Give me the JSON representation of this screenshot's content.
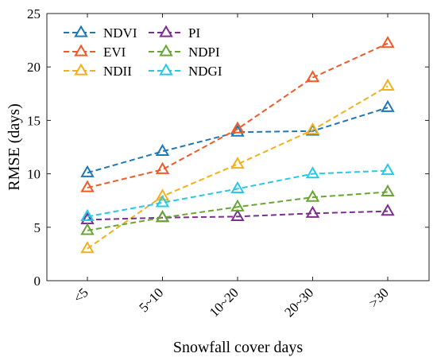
{
  "chart_data": {
    "type": "line",
    "categories": [
      "<5",
      "5~10",
      "10~20",
      "20~30",
      ">30"
    ],
    "xlabel": "Snowfall cover days",
    "ylabel": "RMSE (days)",
    "ylim": [
      0,
      25
    ],
    "yticks": [
      0,
      5,
      10,
      15,
      20,
      25
    ],
    "legend_position": "top-left",
    "series": [
      {
        "name": "NDVI",
        "values": [
          10.1,
          12.1,
          13.9,
          14.0,
          16.2
        ],
        "color": "#1f77b4"
      },
      {
        "name": "EVI",
        "values": [
          8.7,
          10.4,
          14.2,
          19.0,
          22.2
        ],
        "color": "#f05a28"
      },
      {
        "name": "NDII",
        "values": [
          3.0,
          7.9,
          10.9,
          14.1,
          18.2
        ],
        "color": "#f2b11c"
      },
      {
        "name": "PI",
        "values": [
          5.7,
          5.9,
          6.0,
          6.3,
          6.5
        ],
        "color": "#7b2f8e"
      },
      {
        "name": "NDPI",
        "values": [
          4.7,
          5.9,
          6.9,
          7.8,
          8.3
        ],
        "color": "#6aa533"
      },
      {
        "name": "NDGI",
        "values": [
          6.0,
          7.3,
          8.6,
          10.0,
          10.3
        ],
        "color": "#28c8e8"
      }
    ]
  }
}
